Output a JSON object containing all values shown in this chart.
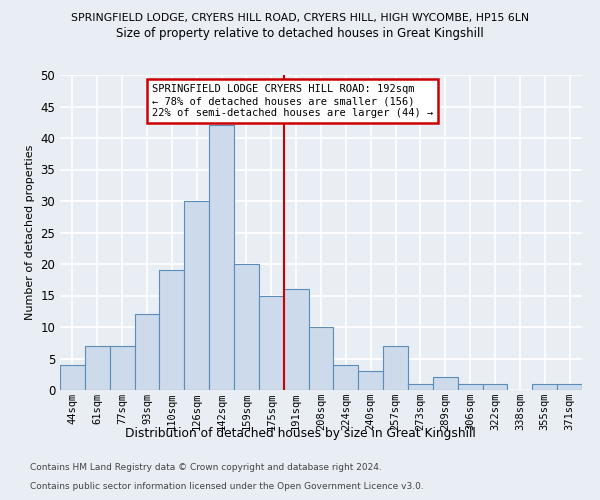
{
  "title_line1": "SPRINGFIELD LODGE, CRYERS HILL ROAD, CRYERS HILL, HIGH WYCOMBE, HP15 6LN",
  "title_line2": "Size of property relative to detached houses in Great Kingshill",
  "xlabel": "Distribution of detached houses by size in Great Kingshill",
  "ylabel": "Number of detached properties",
  "bin_labels": [
    "44sqm",
    "61sqm",
    "77sqm",
    "93sqm",
    "110sqm",
    "126sqm",
    "142sqm",
    "159sqm",
    "175sqm",
    "191sqm",
    "208sqm",
    "224sqm",
    "240sqm",
    "257sqm",
    "273sqm",
    "289sqm",
    "306sqm",
    "322sqm",
    "338sqm",
    "355sqm",
    "371sqm"
  ],
  "bar_heights": [
    4,
    7,
    7,
    12,
    19,
    30,
    42,
    20,
    15,
    16,
    10,
    4,
    3,
    7,
    1,
    2,
    1,
    1,
    0,
    1,
    1
  ],
  "bar_color": "#ccdaeb",
  "bar_edge_color": "#5b8db8",
  "ylim": [
    0,
    50
  ],
  "yticks": [
    0,
    5,
    10,
    15,
    20,
    25,
    30,
    35,
    40,
    45,
    50
  ],
  "property_bin_index": 9,
  "annotation_title": "SPRINGFIELD LODGE CRYERS HILL ROAD: 192sqm",
  "annotation_line2": "← 78% of detached houses are smaller (156)",
  "annotation_line3": "22% of semi-detached houses are larger (44) →",
  "footer_line1": "Contains HM Land Registry data © Crown copyright and database right 2024.",
  "footer_line2": "Contains public sector information licensed under the Open Government Licence v3.0.",
  "background_color": "#e8eef4",
  "grid_color": "#ffffff",
  "annotation_box_color": "#ffffff",
  "annotation_box_edge": "#cc0000",
  "vline_color": "#cc0000"
}
